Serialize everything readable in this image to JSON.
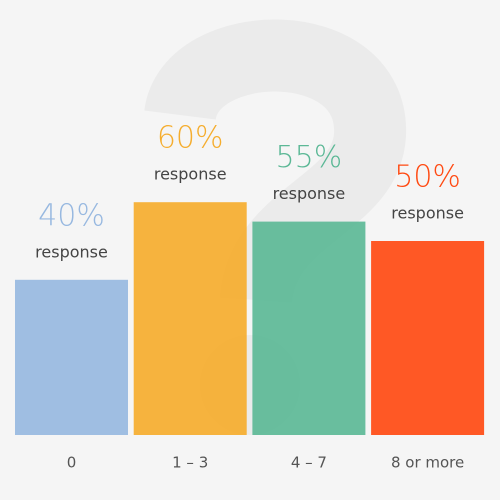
{
  "chart_data": {
    "type": "bar",
    "categories": [
      "0",
      "1 – 3",
      "4 – 7",
      "8 or more"
    ],
    "values": [
      40,
      60,
      55,
      50
    ],
    "value_labels": [
      "40%",
      "60%",
      "55%",
      "50%"
    ],
    "value_caption": "response",
    "colors": [
      "#97b8e0",
      "#f5ad2e",
      "#5cb896",
      "#ff4a12"
    ]
  }
}
